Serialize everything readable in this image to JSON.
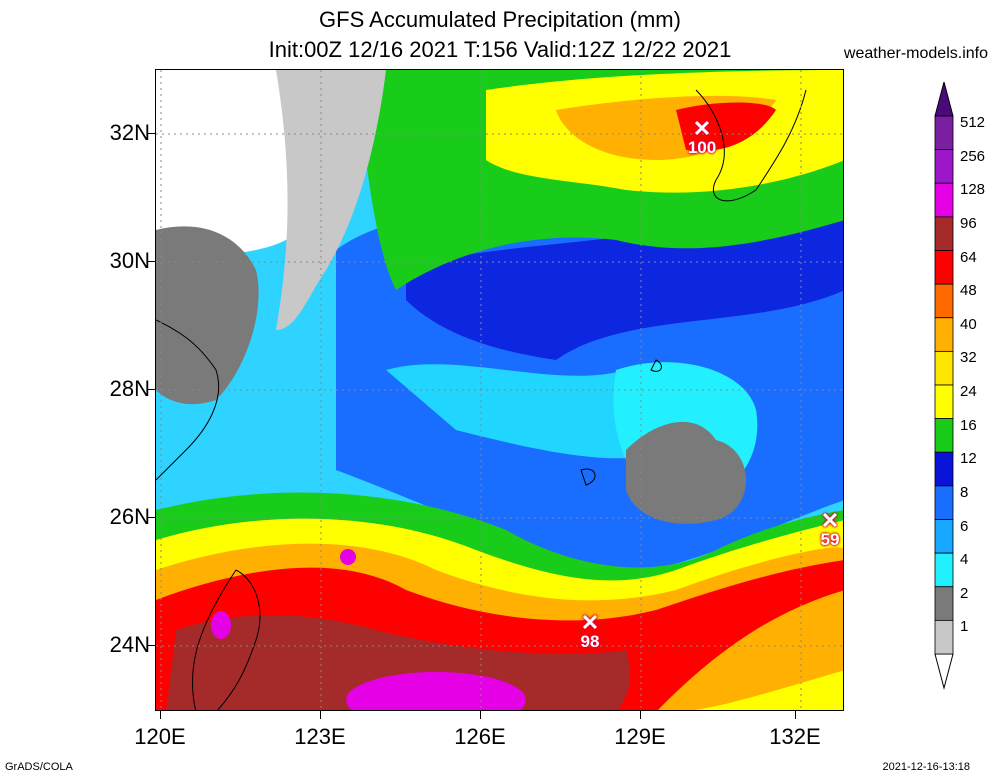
{
  "title_line1": "GFS Accumulated Precipitation (mm)",
  "title_line2": "Init:00Z 12/16 2021 T:156 Valid:12Z 12/22 2021",
  "site": "weather-models.info",
  "footer_left": "GrADS/COLA",
  "footer_right": "2021-12-16-13:18",
  "lat_labels": [
    "32N",
    "30N",
    "28N",
    "26N",
    "24N"
  ],
  "lon_labels": [
    "120E",
    "123E",
    "126E",
    "129E",
    "132E"
  ],
  "colorbar": {
    "labels": [
      "512",
      "256",
      "128",
      "96",
      "64",
      "48",
      "40",
      "32",
      "24",
      "16",
      "12",
      "8",
      "6",
      "4",
      "2",
      "1"
    ],
    "colors": [
      "#7b1fa2",
      "#9c17c8",
      "#e600e6",
      "#a52a2a",
      "#ff0000",
      "#ff6a00",
      "#ffb000",
      "#ffe600",
      "#ffff00",
      "#19cc19",
      "#0a14d8",
      "#1a6eff",
      "#19a8ff",
      "#22f0ff",
      "#7a7a7a",
      "#c8c8c8"
    ]
  },
  "markers": [
    {
      "value": "100"
    },
    {
      "value": "59"
    },
    {
      "value": "98"
    }
  ]
}
